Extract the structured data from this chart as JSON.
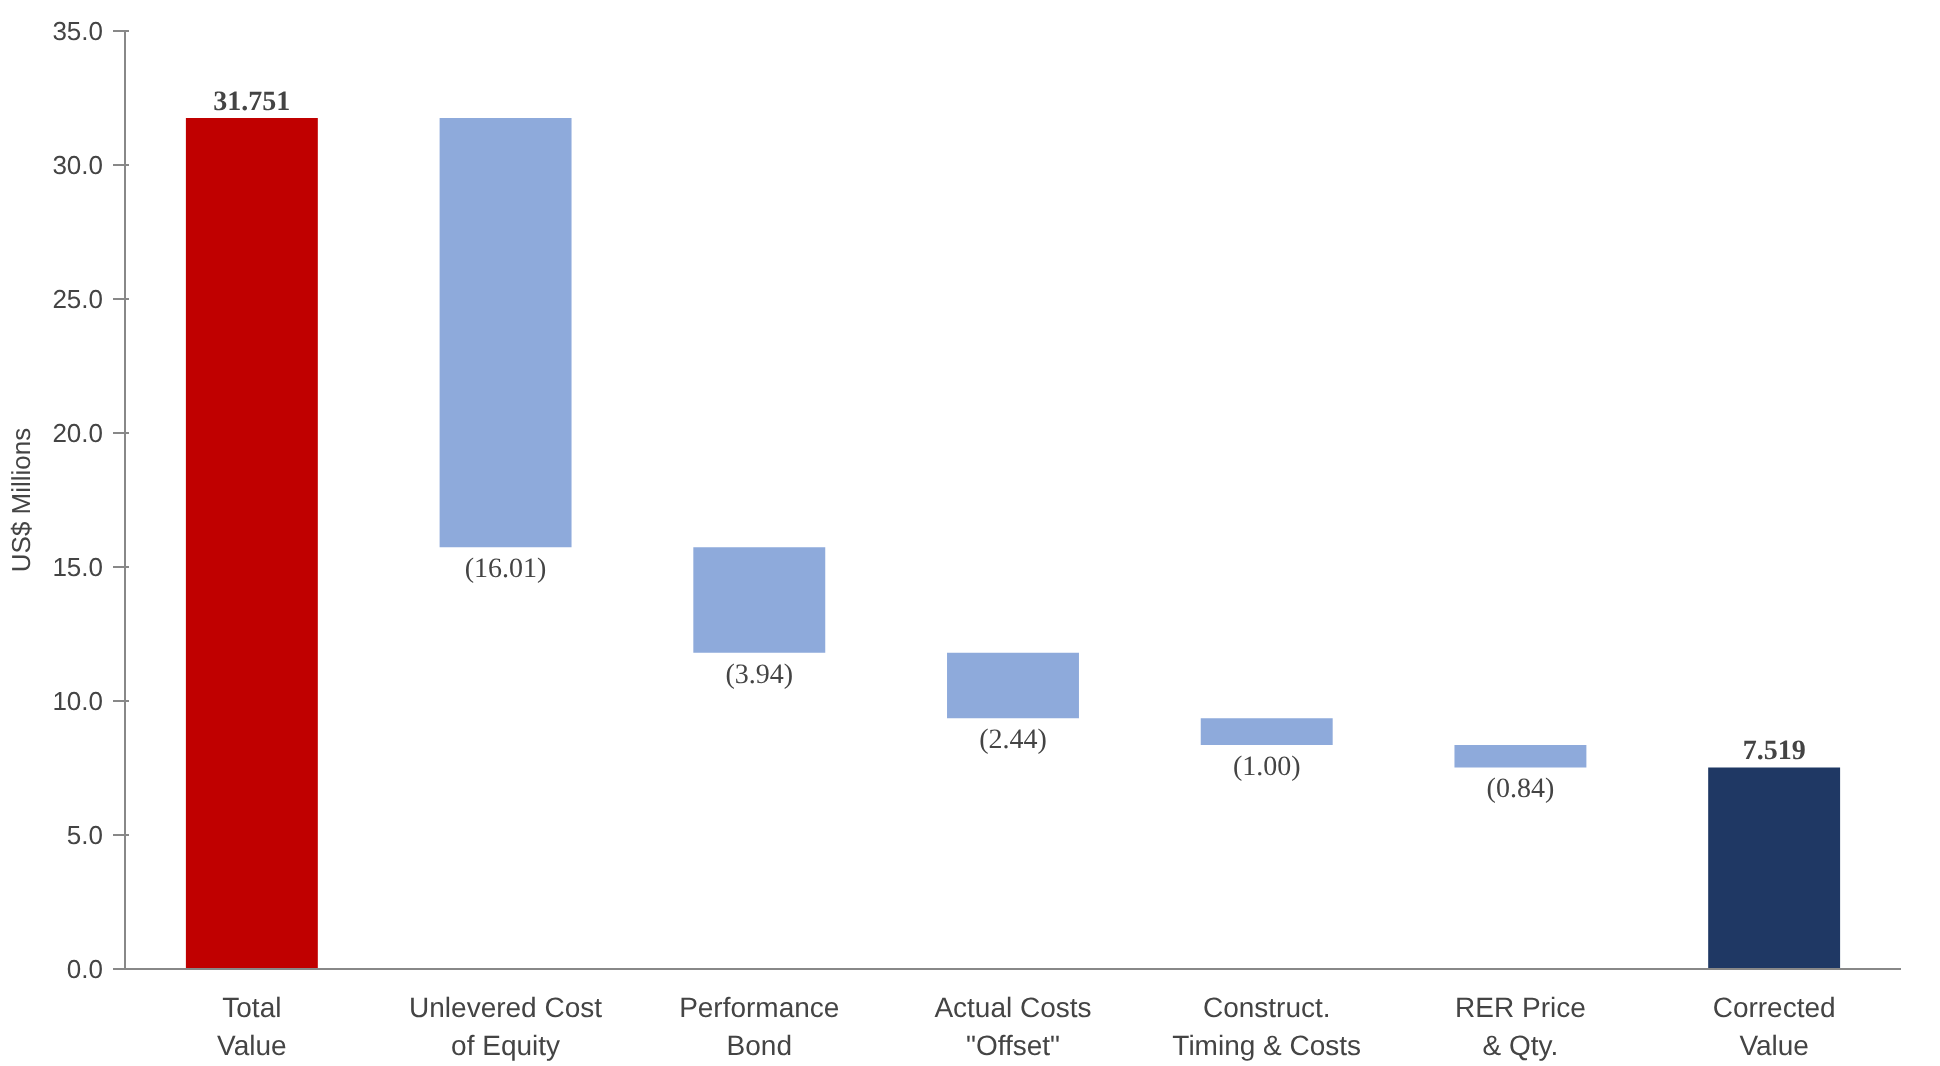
{
  "chart_data": {
    "type": "bar",
    "ylabel": "US$ Millions",
    "categories": [
      "Total\nValue",
      "Unlevered Cost\nof Equity",
      "Performance\nBond",
      "Actual Costs\n\"Offset\"",
      "Construct.\nTiming & Costs",
      "RER Price\n& Qty.",
      "Corrected\nValue"
    ],
    "values": [
      31.751,
      -16.01,
      -3.94,
      -2.44,
      -1.0,
      -0.84,
      7.519
    ],
    "base": [
      0,
      31.751,
      15.741,
      11.801,
      9.361,
      8.361,
      0
    ],
    "colors": [
      "#c00000",
      "#8eaadb",
      "#8eaadb",
      "#8eaadb",
      "#8eaadb",
      "#8eaadb",
      "#1f3864"
    ],
    "value_labels": [
      "31.751",
      "(16.01)",
      "(3.94)",
      "(2.44)",
      "(1.00)",
      "(0.84)",
      "7.519"
    ],
    "ylim": [
      0,
      35
    ],
    "yticks": [
      {
        "value": 0,
        "label": "0.0"
      },
      {
        "value": 5,
        "label": "5.0"
      },
      {
        "value": 10,
        "label": "10.0"
      },
      {
        "value": 15,
        "label": "15.0"
      },
      {
        "value": 20,
        "label": "20.0"
      },
      {
        "value": 25,
        "label": "25.0"
      },
      {
        "value": 30,
        "label": "30.0"
      },
      {
        "value": 35,
        "label": "35.0"
      }
    ],
    "grid": false
  }
}
